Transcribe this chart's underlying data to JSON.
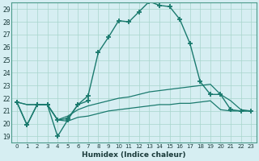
{
  "xlabel": "Humidex (Indice chaleur)",
  "x": [
    0,
    1,
    2,
    3,
    4,
    5,
    6,
    7,
    8,
    9,
    10,
    11,
    12,
    13,
    14,
    15,
    16,
    17,
    18,
    19,
    20,
    21,
    22,
    23
  ],
  "line1": [
    21.7,
    19.9,
    21.5,
    21.5,
    20.3,
    20.4,
    21.5,
    22.2,
    25.6,
    26.8,
    28.1,
    28.0,
    28.8,
    29.6,
    29.3,
    29.2,
    28.2,
    26.3,
    23.3,
    22.3,
    22.3,
    21.1,
    21.0,
    21.0
  ],
  "line2": [
    21.7,
    19.9,
    21.5,
    21.5,
    19.0,
    20.3,
    21.5,
    21.8,
    null,
    null,
    null,
    null,
    null,
    null,
    null,
    null,
    null,
    null,
    null,
    null,
    null,
    null,
    null,
    null
  ],
  "line3": [
    21.7,
    21.5,
    21.5,
    21.5,
    20.3,
    20.6,
    21.1,
    21.4,
    21.6,
    21.8,
    22.0,
    22.1,
    22.3,
    22.5,
    22.6,
    22.7,
    22.8,
    22.9,
    23.0,
    23.1,
    22.3,
    21.8,
    21.1,
    21.0
  ],
  "line4": [
    21.7,
    21.5,
    21.5,
    21.5,
    20.3,
    20.2,
    20.5,
    20.6,
    20.8,
    21.0,
    21.1,
    21.2,
    21.3,
    21.4,
    21.5,
    21.5,
    21.6,
    21.6,
    21.7,
    21.8,
    21.1,
    21.0,
    21.0,
    21.0
  ],
  "bg_color": "#d6eef2",
  "line_color": "#1a7a6e",
  "grid_color": "#a8d5cc",
  "ylim_min": 19,
  "ylim_max": 29,
  "yticks": [
    19,
    20,
    21,
    22,
    23,
    24,
    25,
    26,
    27,
    28,
    29
  ],
  "xticks": [
    0,
    1,
    2,
    3,
    4,
    5,
    6,
    7,
    8,
    9,
    10,
    11,
    12,
    13,
    14,
    15,
    16,
    17,
    18,
    19,
    20,
    21,
    22,
    23
  ]
}
